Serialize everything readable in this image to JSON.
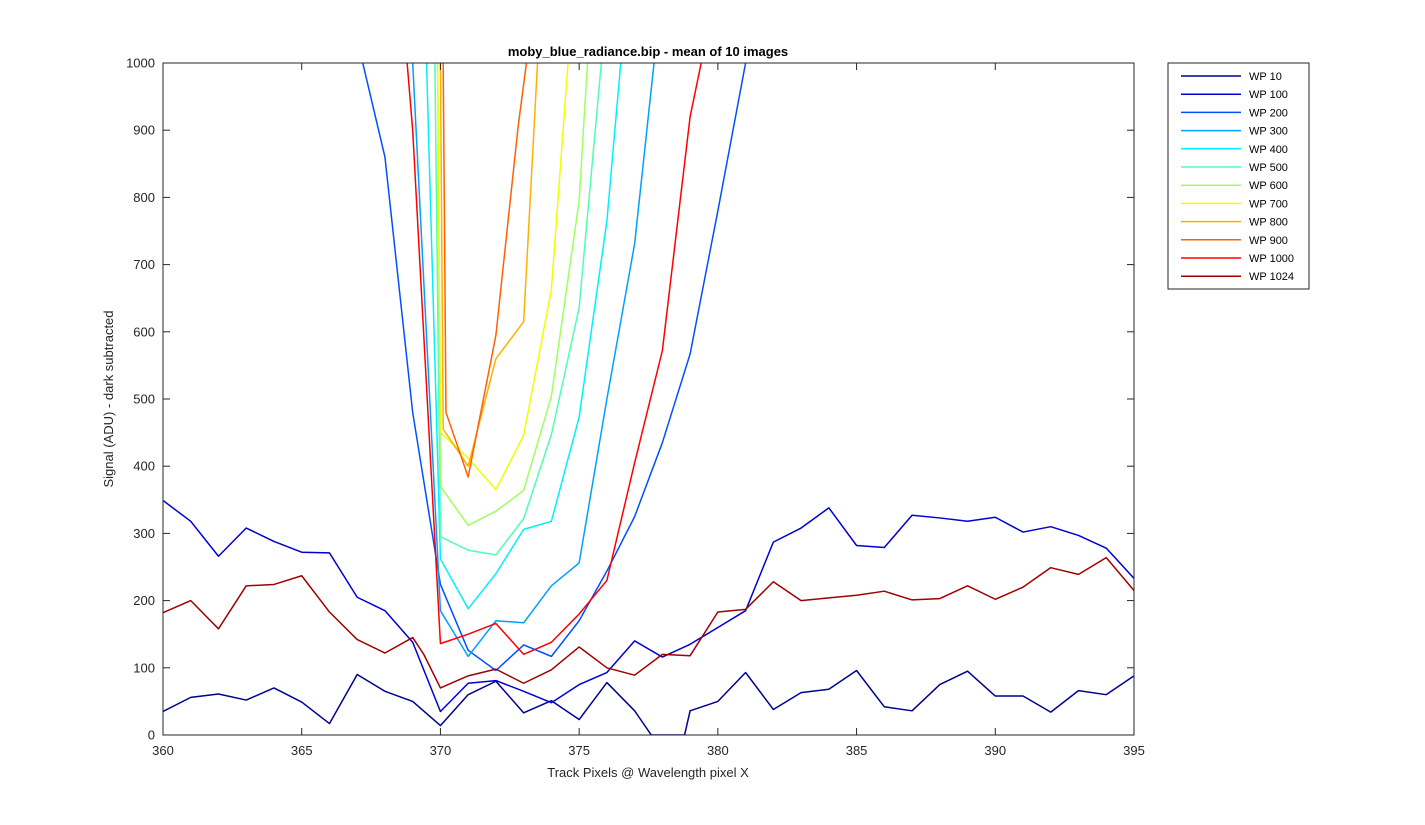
{
  "chart_data": {
    "type": "line",
    "title": "moby_blue_radiance.bip - mean of 10 images",
    "xlabel": "Track Pixels @ Wavelength pixel X",
    "ylabel": "Signal (ADU) - dark subtracted",
    "xlim": [
      360,
      395
    ],
    "ylim": [
      0,
      1000
    ],
    "xticks": [
      360,
      365,
      370,
      375,
      380,
      385,
      390,
      395
    ],
    "yticks": [
      0,
      100,
      200,
      300,
      400,
      500,
      600,
      700,
      800,
      900,
      1000
    ],
    "legend_position": "outside-top-right",
    "series": [
      {
        "name": "WP 10",
        "color": "#00008F",
        "x": [
          360,
          361,
          362,
          363,
          364,
          365,
          366,
          367,
          368,
          369,
          370,
          371,
          372,
          373,
          374,
          375,
          376,
          377,
          377.6,
          378.8,
          379,
          380,
          381,
          382,
          383,
          384,
          385,
          386,
          387,
          388,
          389,
          390,
          391,
          392,
          393,
          394,
          395
        ],
        "y": [
          35,
          56,
          61,
          52,
          70,
          49,
          17,
          90,
          65,
          50,
          14,
          60,
          80,
          33,
          51,
          23,
          78,
          36,
          0,
          0,
          36,
          50,
          93,
          38,
          63,
          68,
          96,
          42,
          36,
          75,
          95,
          58,
          58,
          34,
          66,
          60,
          88
        ]
      },
      {
        "name": "WP 100",
        "color": "#0000D0",
        "x": [
          360,
          361,
          362,
          363,
          364,
          365,
          366,
          367,
          368,
          369,
          370,
          371,
          372,
          373,
          374,
          375,
          376,
          377,
          378,
          379,
          380,
          381,
          382,
          383,
          384,
          385,
          386,
          387,
          388,
          389,
          390,
          391,
          392,
          393,
          394,
          395
        ],
        "y": [
          349,
          318,
          266,
          308,
          288,
          272,
          271,
          205,
          185,
          138,
          35,
          77,
          81,
          65,
          48,
          75,
          93,
          140,
          116,
          135,
          160,
          185,
          287,
          308,
          338,
          282,
          279,
          327,
          323,
          318,
          324,
          302,
          310,
          297,
          278,
          233
        ]
      },
      {
        "name": "WP 200",
        "color": "#0050FF",
        "x": [
          367.2,
          368,
          369,
          370,
          371,
          372,
          373,
          374,
          375,
          376,
          377,
          378,
          379,
          380,
          381
        ],
        "y": [
          1000,
          860,
          480,
          224,
          126,
          96,
          134,
          117,
          170,
          244,
          325,
          435,
          567,
          780,
          1000
        ]
      },
      {
        "name": "WP 300",
        "color": "#00A0FF",
        "x": [
          369,
          370,
          371,
          372,
          373,
          374,
          375,
          376,
          377,
          377.7
        ],
        "y": [
          1000,
          185,
          117,
          170,
          167,
          222,
          256,
          500,
          731,
          1000
        ]
      },
      {
        "name": "WP 400",
        "color": "#00F0FF",
        "x": [
          369.5,
          370,
          371,
          372,
          373,
          374,
          375,
          376,
          376.5
        ],
        "y": [
          1000,
          262,
          188,
          240,
          306,
          318,
          473,
          765,
          1000
        ]
      },
      {
        "name": "WP 500",
        "color": "#50FFAF",
        "x": [
          369.8,
          370,
          371,
          372,
          373,
          374,
          375,
          375.8
        ],
        "y": [
          1000,
          295,
          275,
          268,
          322,
          447,
          636,
          1000
        ]
      },
      {
        "name": "WP 600",
        "color": "#A0FF60",
        "x": [
          369.9,
          370,
          371,
          372,
          373,
          374,
          375,
          375.3
        ],
        "y": [
          1000,
          370,
          312,
          333,
          364,
          504,
          795,
          1000
        ]
      },
      {
        "name": "WP 700",
        "color": "#F0FF00",
        "x": [
          369.9,
          370,
          371,
          372,
          373,
          374,
          374.6
        ],
        "y": [
          1000,
          450,
          412,
          365,
          446,
          663,
          1000
        ]
      },
      {
        "name": "WP 800",
        "color": "#FFB000",
        "x": [
          370,
          370.1,
          371,
          372,
          373,
          373.5
        ],
        "y": [
          1000,
          455,
          400,
          560,
          615,
          1000
        ]
      },
      {
        "name": "WP 900",
        "color": "#FF6000",
        "x": [
          370.1,
          370.2,
          371,
          372,
          372.8,
          373.1
        ],
        "y": [
          1000,
          480,
          384,
          595,
          905,
          1000
        ]
      },
      {
        "name": "WP 1000",
        "color": "#FF0000",
        "x": [
          368.8,
          369,
          370,
          371,
          372,
          373,
          374,
          375,
          376,
          377,
          378,
          379,
          379.4
        ],
        "y": [
          1000,
          900,
          136,
          150,
          166,
          120,
          138,
          180,
          230,
          405,
          572,
          920,
          1000
        ]
      },
      {
        "name": "WP 1024",
        "color": "#A00000",
        "x": [
          360,
          361,
          362,
          363,
          364,
          365,
          366,
          367,
          368,
          369,
          369.4,
          370,
          371,
          372,
          373,
          374,
          375,
          376,
          377,
          378,
          379,
          380,
          381,
          382,
          383,
          384,
          385,
          386,
          387,
          388,
          389,
          390,
          391,
          392,
          393,
          394,
          395
        ],
        "y": [
          182,
          200,
          158,
          222,
          224,
          237,
          183,
          142,
          122,
          145,
          120,
          70,
          88,
          98,
          77,
          97,
          131,
          100,
          89,
          120,
          118,
          183,
          187,
          228,
          200,
          204,
          208,
          214,
          201,
          203,
          222,
          202,
          220,
          249,
          239,
          264,
          215
        ]
      }
    ]
  }
}
